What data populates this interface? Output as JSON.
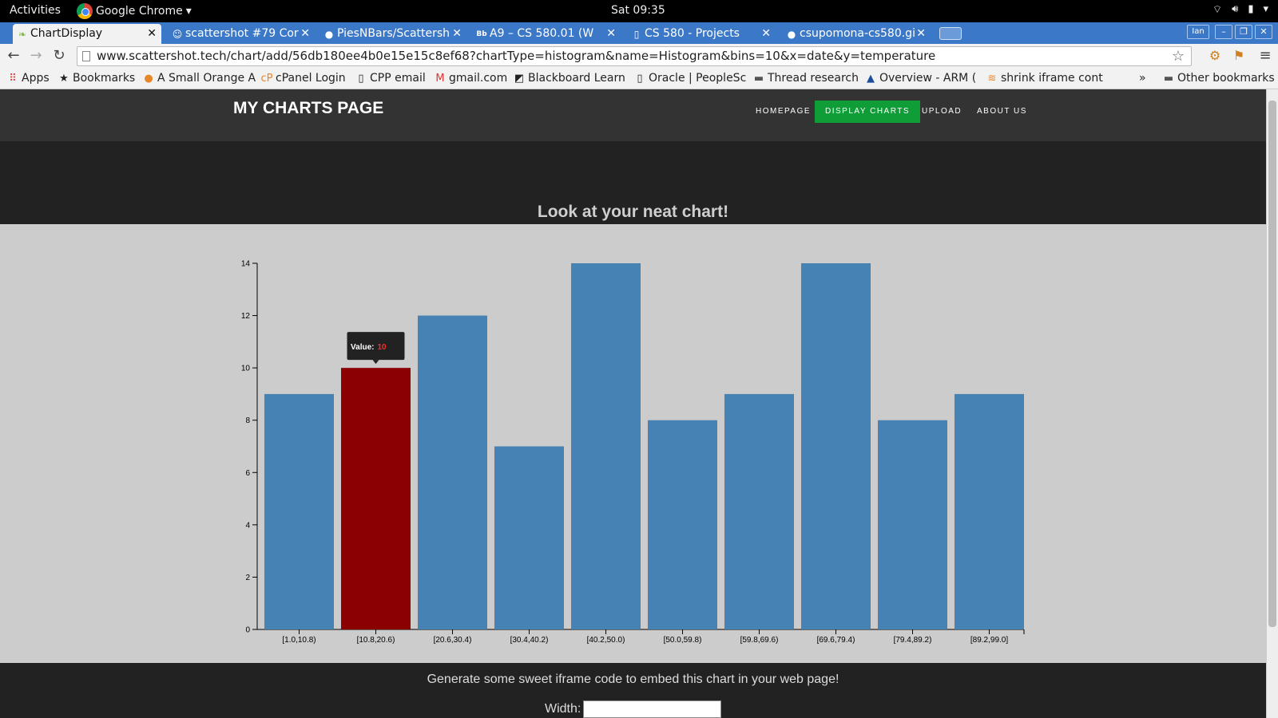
{
  "system_bar": {
    "activities": "Activities",
    "app_name": "Google Chrome",
    "clock": "Sat 09:35"
  },
  "tabs": [
    {
      "title": "ChartDisplay",
      "icon": "leaf-icon",
      "active": true
    },
    {
      "title": "scattershot #79 Cor",
      "icon": "avatar-icon",
      "active": false
    },
    {
      "title": "PiesNBars/Scattersh",
      "icon": "github-icon",
      "active": false
    },
    {
      "title": "A9 – CS 580.01 (W",
      "icon": "blackboard-icon",
      "active": false
    },
    {
      "title": "CS 580 - Projects",
      "icon": "page-icon",
      "active": false
    },
    {
      "title": "csupomona-cs580.gi",
      "icon": "github-icon",
      "active": false
    }
  ],
  "window": {
    "user_badge": "Ian"
  },
  "address_bar": {
    "url": "www.scattershot.tech/chart/add/56db180ee4b0e15e15c8ef68?chartType=histogram&name=Histogram&bins=10&x=date&y=temperature"
  },
  "bookmarks": [
    {
      "label": "Apps",
      "icon": "apps-grid-icon"
    },
    {
      "label": "Bookmarks",
      "icon": "star-icon"
    },
    {
      "label": "A Small Orange A",
      "icon": "orange-icon"
    },
    {
      "label": "cPanel Login",
      "icon": "cpanel-icon"
    },
    {
      "label": "CPP email",
      "icon": "page-icon"
    },
    {
      "label": "gmail.com",
      "icon": "gmail-icon"
    },
    {
      "label": "Blackboard Learn",
      "icon": "blackboard-icon"
    },
    {
      "label": "Oracle | PeopleSc",
      "icon": "page-icon"
    },
    {
      "label": "Thread research",
      "icon": "folder-icon"
    },
    {
      "label": "Overview - ARM (",
      "icon": "arm-icon"
    },
    {
      "label": "shrink iframe cont",
      "icon": "stackoverflow-icon"
    },
    {
      "label": "Other bookmarks",
      "icon": "folder-icon"
    }
  ],
  "site": {
    "brand": "MY CHARTS PAGE",
    "nav": [
      {
        "label": "HOMEPAGE",
        "active": false
      },
      {
        "label": "DISPLAY CHARTS",
        "active": true
      },
      {
        "label": "UPLOAD",
        "active": false
      },
      {
        "label": "ABOUT US",
        "active": false
      }
    ],
    "hero_title": "Look at your neat chart!",
    "embed_text": "Generate some sweet iframe code to embed this chart in your web page!",
    "width_label": "Width:",
    "width_value": ""
  },
  "tooltip": {
    "label": "Value:",
    "value": "10",
    "bin_index": 1
  },
  "colors": {
    "bar": "#4682b4",
    "bar_highlight": "#8b0000",
    "nav_active": "#0f9d38",
    "tooltip_value": "#ff2a2a"
  },
  "chart_data": {
    "type": "bar",
    "categories": [
      "[1.0,10.8)",
      "[10.8,20.6)",
      "[20.6,30.4)",
      "[30.4,40.2)",
      "[40.2,50.0)",
      "[50.0,59.8)",
      "[59.8,69.6)",
      "[69.6,79.4)",
      "[79.4,89.2)",
      "[89.2,99.0]"
    ],
    "values": [
      9,
      10,
      12,
      7,
      14,
      8,
      9,
      14,
      8,
      9
    ],
    "ylim": [
      0,
      14
    ],
    "yticks": [
      0,
      2,
      4,
      6,
      8,
      10,
      12,
      14
    ],
    "grid": false,
    "highlighted_index": 1
  }
}
